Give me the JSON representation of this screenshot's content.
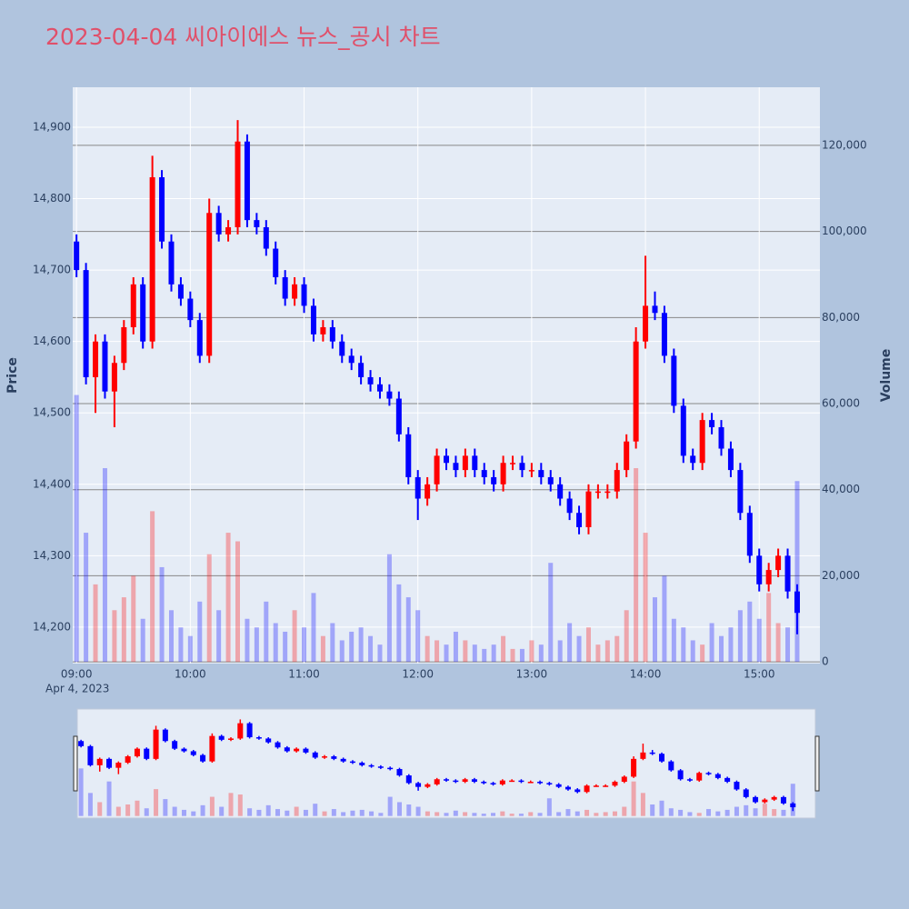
{
  "chart_data": {
    "type": "candlestick",
    "title": "2023-04-04 씨아이에스 뉴스_공시 차트",
    "ylabel": "Price",
    "y2label": "Volume",
    "xaxis_date": "Apr 4, 2023",
    "increasing_color": "#ff0000",
    "decreasing_color": "#0000ff",
    "x": [
      "2023-04-04 09:00",
      "2023-04-04 09:05",
      "2023-04-04 09:10",
      "2023-04-04 09:15",
      "2023-04-04 09:20",
      "2023-04-04 09:25",
      "2023-04-04 09:30",
      "2023-04-04 09:35",
      "2023-04-04 09:40",
      "2023-04-04 09:45",
      "2023-04-04 09:50",
      "2023-04-04 09:55",
      "2023-04-04 10:00",
      "2023-04-04 10:05",
      "2023-04-04 10:10",
      "2023-04-04 10:15",
      "2023-04-04 10:20",
      "2023-04-04 10:25",
      "2023-04-04 10:30",
      "2023-04-04 10:35",
      "2023-04-04 10:40",
      "2023-04-04 10:45",
      "2023-04-04 10:50",
      "2023-04-04 10:55",
      "2023-04-04 11:00",
      "2023-04-04 11:05",
      "2023-04-04 11:10",
      "2023-04-04 11:15",
      "2023-04-04 11:20",
      "2023-04-04 11:25",
      "2023-04-04 11:30",
      "2023-04-04 11:35",
      "2023-04-04 11:40",
      "2023-04-04 11:45",
      "2023-04-04 11:50",
      "2023-04-04 11:55",
      "2023-04-04 12:00",
      "2023-04-04 12:05",
      "2023-04-04 12:10",
      "2023-04-04 12:15",
      "2023-04-04 12:20",
      "2023-04-04 12:25",
      "2023-04-04 12:30",
      "2023-04-04 12:35",
      "2023-04-04 12:40",
      "2023-04-04 12:45",
      "2023-04-04 12:50",
      "2023-04-04 12:55",
      "2023-04-04 13:00",
      "2023-04-04 13:05",
      "2023-04-04 13:10",
      "2023-04-04 13:15",
      "2023-04-04 13:20",
      "2023-04-04 13:25",
      "2023-04-04 13:30",
      "2023-04-04 13:35",
      "2023-04-04 13:40",
      "2023-04-04 13:45",
      "2023-04-04 13:50",
      "2023-04-04 13:55",
      "2023-04-04 14:00",
      "2023-04-04 14:05",
      "2023-04-04 14:10",
      "2023-04-04 14:15",
      "2023-04-04 14:20",
      "2023-04-04 14:25",
      "2023-04-04 14:30",
      "2023-04-04 14:35",
      "2023-04-04 14:40",
      "2023-04-04 14:45",
      "2023-04-04 14:50",
      "2023-04-04 14:55",
      "2023-04-04 15:00",
      "2023-04-04 15:05",
      "2023-04-04 15:10",
      "2023-04-04 15:15",
      "2023-04-04 15:20"
    ],
    "open": [
      14740,
      14700,
      14550,
      14600,
      14530,
      14570,
      14620,
      14680,
      14600,
      14830,
      14740,
      14680,
      14660,
      14630,
      14580,
      14780,
      14750,
      14760,
      14880,
      14770,
      14760,
      14730,
      14690,
      14660,
      14680,
      14650,
      14610,
      14620,
      14600,
      14580,
      14570,
      14550,
      14540,
      14530,
      14520,
      14470,
      14410,
      14380,
      14400,
      14440,
      14430,
      14420,
      14440,
      14420,
      14410,
      14400,
      14430,
      14430,
      14420,
      14420,
      14410,
      14400,
      14380,
      14360,
      14340,
      14390,
      14390,
      14390,
      14420,
      14460,
      14600,
      14650,
      14640,
      14580,
      14510,
      14440,
      14430,
      14490,
      14480,
      14450,
      14420,
      14360,
      14300,
      14260,
      14280,
      14300,
      14250
    ],
    "high": [
      14750,
      14710,
      14610,
      14610,
      14580,
      14630,
      14690,
      14690,
      14860,
      14840,
      14750,
      14690,
      14670,
      14640,
      14800,
      14790,
      14770,
      14910,
      14890,
      14780,
      14770,
      14740,
      14700,
      14690,
      14690,
      14660,
      14630,
      14630,
      14610,
      14590,
      14580,
      14560,
      14550,
      14540,
      14530,
      14480,
      14420,
      14410,
      14450,
      14450,
      14440,
      14450,
      14450,
      14430,
      14420,
      14440,
      14440,
      14440,
      14430,
      14430,
      14420,
      14410,
      14390,
      14370,
      14400,
      14400,
      14400,
      14430,
      14470,
      14620,
      14720,
      14670,
      14650,
      14590,
      14520,
      14450,
      14500,
      14500,
      14490,
      14460,
      14430,
      14370,
      14310,
      14290,
      14310,
      14310,
      14260
    ],
    "low": [
      14690,
      14540,
      14500,
      14520,
      14480,
      14560,
      14610,
      14590,
      14590,
      14730,
      14670,
      14650,
      14620,
      14570,
      14570,
      14740,
      14740,
      14750,
      14760,
      14750,
      14720,
      14680,
      14650,
      14650,
      14640,
      14600,
      14600,
      14590,
      14570,
      14560,
      14540,
      14530,
      14520,
      14510,
      14460,
      14400,
      14350,
      14370,
      14390,
      14420,
      14410,
      14410,
      14410,
      14400,
      14390,
      14390,
      14420,
      14410,
      14410,
      14400,
      14390,
      14370,
      14350,
      14330,
      14330,
      14380,
      14380,
      14380,
      14410,
      14450,
      14590,
      14630,
      14570,
      14500,
      14430,
      14420,
      14420,
      14470,
      14440,
      14410,
      14350,
      14290,
      14250,
      14250,
      14270,
      14240,
      14190
    ],
    "close": [
      14700,
      14550,
      14600,
      14530,
      14570,
      14620,
      14680,
      14600,
      14830,
      14740,
      14680,
      14660,
      14630,
      14580,
      14780,
      14750,
      14760,
      14880,
      14770,
      14760,
      14730,
      14690,
      14660,
      14680,
      14650,
      14610,
      14620,
      14600,
      14580,
      14570,
      14550,
      14540,
      14530,
      14520,
      14470,
      14410,
      14380,
      14400,
      14440,
      14430,
      14420,
      14440,
      14420,
      14410,
      14400,
      14430,
      14430,
      14420,
      14420,
      14410,
      14400,
      14380,
      14360,
      14340,
      14390,
      14390,
      14390,
      14420,
      14460,
      14600,
      14650,
      14640,
      14580,
      14510,
      14440,
      14430,
      14490,
      14480,
      14450,
      14420,
      14360,
      14300,
      14260,
      14280,
      14300,
      14250,
      14220
    ],
    "volume": [
      62000,
      30000,
      18000,
      45000,
      12000,
      15000,
      20000,
      10000,
      35000,
      22000,
      12000,
      8000,
      6000,
      14000,
      25000,
      12000,
      30000,
      28000,
      10000,
      8000,
      14000,
      9000,
      7000,
      12000,
      8000,
      16000,
      6000,
      9000,
      5000,
      7000,
      8000,
      6000,
      4000,
      25000,
      18000,
      15000,
      12000,
      6000,
      5000,
      4000,
      7000,
      5000,
      4000,
      3000,
      4000,
      6000,
      3000,
      3000,
      5000,
      4000,
      23000,
      5000,
      9000,
      6000,
      8000,
      4000,
      5000,
      6000,
      12000,
      45000,
      30000,
      15000,
      20000,
      10000,
      8000,
      5000,
      4000,
      9000,
      6000,
      8000,
      12000,
      14000,
      10000,
      16000,
      9000,
      8000,
      42000
    ],
    "xlim": [
      "2023-04-04 08:58",
      "2023-04-04 15:32"
    ],
    "xticks": [
      {
        "value": "2023-04-04 09:00",
        "label": "09:00"
      },
      {
        "value": "2023-04-04 10:00",
        "label": "10:00"
      },
      {
        "value": "2023-04-04 11:00",
        "label": "11:00"
      },
      {
        "value": "2023-04-04 12:00",
        "label": "12:00"
      },
      {
        "value": "2023-04-04 13:00",
        "label": "13:00"
      },
      {
        "value": "2023-04-04 14:00",
        "label": "14:00"
      },
      {
        "value": "2023-04-04 15:00",
        "label": "15:00"
      }
    ],
    "ylim": [
      14149,
      14956
    ],
    "yticks": [
      {
        "value": 14200,
        "label": "14,200"
      },
      {
        "value": 14300,
        "label": "14,300"
      },
      {
        "value": 14400,
        "label": "14,400"
      },
      {
        "value": 14500,
        "label": "14,500"
      },
      {
        "value": 14600,
        "label": "14,600"
      },
      {
        "value": 14700,
        "label": "14,700"
      },
      {
        "value": 14800,
        "label": "14,800"
      },
      {
        "value": 14900,
        "label": "14,900"
      }
    ],
    "y2lim": [
      -400,
      133500
    ],
    "y2ticks": [
      0,
      {
        "value": 20000,
        "label": "20,000"
      },
      {
        "value": 40000,
        "label": "40,000"
      },
      {
        "value": 60000,
        "label": "60,000"
      },
      {
        "value": 80000,
        "label": "80,000"
      },
      {
        "value": 100000,
        "label": "100,000"
      },
      {
        "value": 120000,
        "label": "120,000"
      }
    ]
  }
}
